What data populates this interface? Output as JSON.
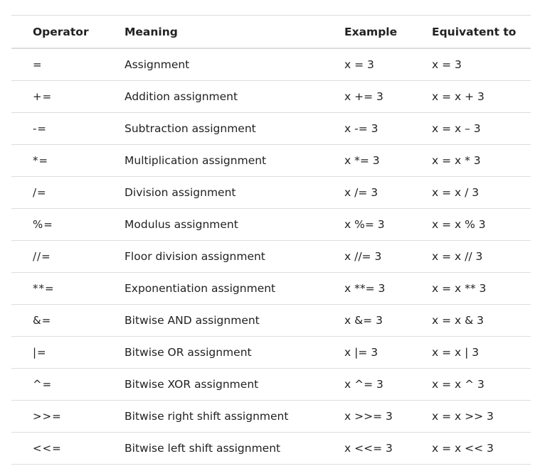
{
  "headers": {
    "operator": "Operator",
    "meaning": "Meaning",
    "example": "Example",
    "equivalent": "Equivatent to"
  },
  "rows": [
    {
      "operator": "=",
      "meaning": "Assignment",
      "example": "x = 3",
      "equivalent": "x = 3"
    },
    {
      "operator": "+=",
      "meaning": "Addition assignment",
      "example": "x += 3",
      "equivalent": "x = x + 3"
    },
    {
      "operator": "-=",
      "meaning": "Subtraction assignment",
      "example": "x -= 3",
      "equivalent": "x = x – 3"
    },
    {
      "operator": "*=",
      "meaning": "Multiplication assignment",
      "example": "x *= 3",
      "equivalent": "x = x * 3"
    },
    {
      "operator": "/=",
      "meaning": "Division assignment",
      "example": "x /= 3",
      "equivalent": "x = x / 3"
    },
    {
      "operator": "%=",
      "meaning": "Modulus assignment",
      "example": "x %= 3",
      "equivalent": "x = x % 3"
    },
    {
      "operator": "//=",
      "meaning": "Floor division assignment",
      "example": "x //= 3",
      "equivalent": "x = x // 3"
    },
    {
      "operator": "**=",
      "meaning": "Exponentiation assignment",
      "example": "x **= 3",
      "equivalent": "x = x ** 3"
    },
    {
      "operator": "&=",
      "meaning": "Bitwise AND assignment",
      "example": "x &= 3",
      "equivalent": "x = x & 3"
    },
    {
      "operator": "|=",
      "meaning": "Bitwise OR assignment",
      "example": "x |= 3",
      "equivalent": "x = x | 3"
    },
    {
      "operator": "^=",
      "meaning": "Bitwise XOR assignment",
      "example": "x ^= 3",
      "equivalent": "x = x ^ 3"
    },
    {
      "operator": ">>=",
      "meaning": "Bitwise right shift assignment",
      "example": "x >>= 3",
      "equivalent": "x = x >> 3"
    },
    {
      "operator": "<<=",
      "meaning": "Bitwise left shift assignment",
      "example": "x <<= 3",
      "equivalent": "x = x << 3"
    }
  ]
}
